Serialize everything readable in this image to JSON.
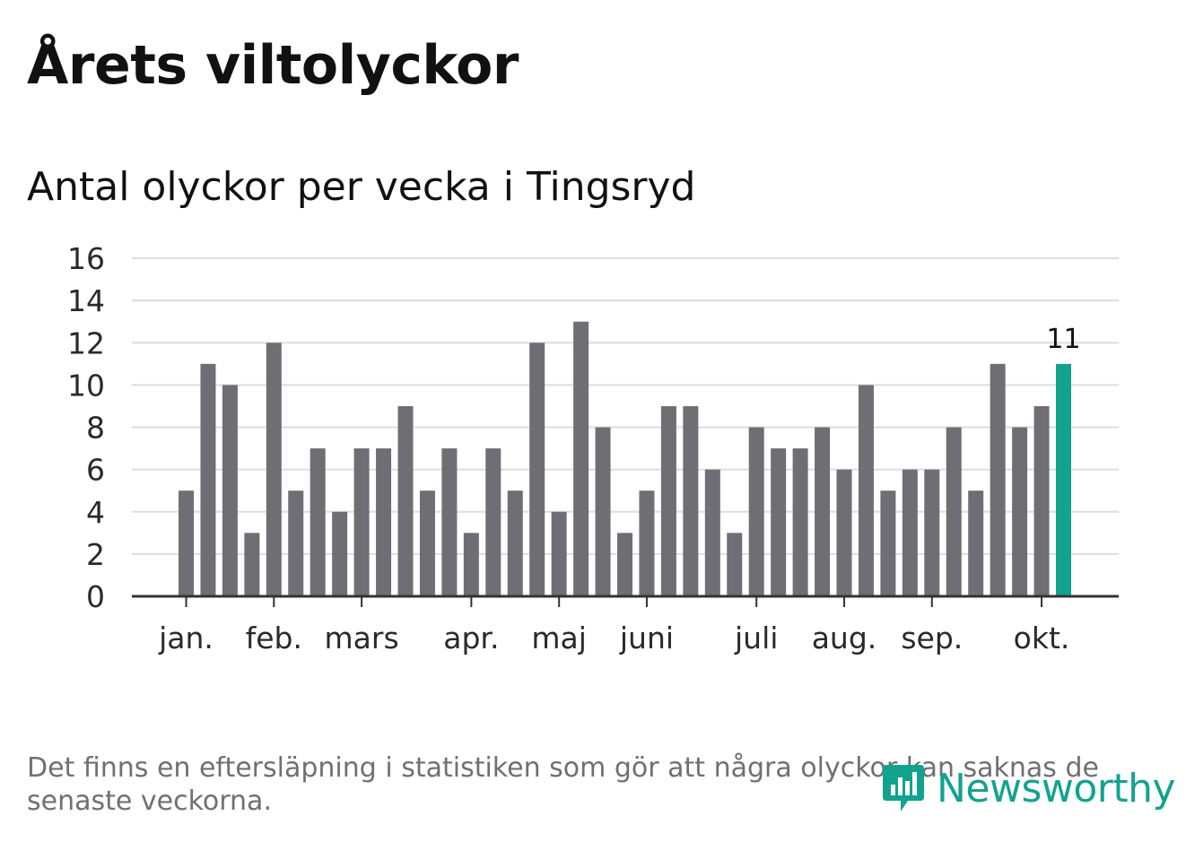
{
  "header": {
    "title": "Årets viltolyckor",
    "subtitle": "Antal olyckor per vecka i Tingsryd"
  },
  "footer": {
    "note": "Det finns en eftersläpning i statistiken som gör att några olyckor kan saknas de senaste veckorna.",
    "logo_text": "Newsworthy"
  },
  "colors": {
    "bar": "#6f6e74",
    "highlight": "#12a38f",
    "grid": "#dddddd",
    "axis": "#333333"
  },
  "chart_data": {
    "type": "bar",
    "title": "Antal olyckor per vecka i Tingsryd",
    "xlabel": "",
    "ylabel": "",
    "ylim": [
      0,
      16
    ],
    "yticks": [
      0,
      2,
      4,
      6,
      8,
      10,
      12,
      14,
      16
    ],
    "grid": true,
    "values": [
      5,
      11,
      10,
      3,
      12,
      5,
      7,
      4,
      7,
      7,
      9,
      5,
      7,
      3,
      7,
      5,
      12,
      4,
      13,
      8,
      3,
      5,
      9,
      9,
      6,
      3,
      8,
      7,
      7,
      8,
      6,
      10,
      5,
      6,
      6,
      8,
      5,
      11,
      8,
      9,
      11
    ],
    "highlight_index": 40,
    "highlight_label": "11",
    "month_labels": [
      {
        "label": "jan.",
        "week_index": 0
      },
      {
        "label": "feb.",
        "week_index": 4
      },
      {
        "label": "mars",
        "week_index": 8
      },
      {
        "label": "apr.",
        "week_index": 13
      },
      {
        "label": "maj",
        "week_index": 17
      },
      {
        "label": "juni",
        "week_index": 21
      },
      {
        "label": "juli",
        "week_index": 26
      },
      {
        "label": "aug.",
        "week_index": 30
      },
      {
        "label": "sep.",
        "week_index": 34
      },
      {
        "label": "okt.",
        "week_index": 39
      }
    ]
  }
}
